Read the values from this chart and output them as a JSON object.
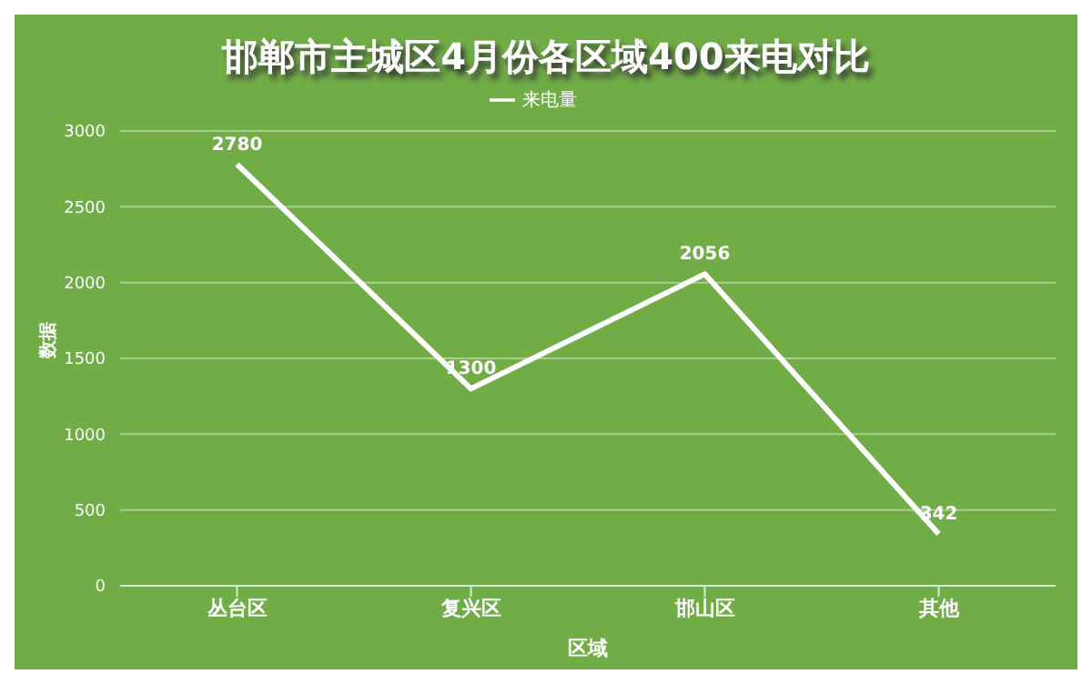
{
  "chart_data": {
    "type": "line",
    "title": "邯郸市主城区4月份各区域400来电对比",
    "xlabel": "区域",
    "ylabel": "数据",
    "categories": [
      "丛台区",
      "复兴区",
      "邯山区",
      "其他"
    ],
    "series": [
      {
        "name": "来电量",
        "color": "#ffffff",
        "values": [
          2780,
          1300,
          2056,
          342
        ]
      }
    ],
    "ylim": [
      0,
      3000
    ],
    "yticks": [
      0,
      500,
      1000,
      1500,
      2000,
      2500,
      3000
    ],
    "grid": "y",
    "legend": "top",
    "marker": "none",
    "line_style": "solid",
    "data_labels": true
  }
}
